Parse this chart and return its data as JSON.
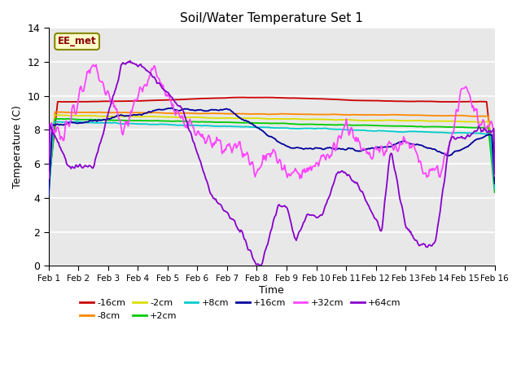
{
  "title": "Soil/Water Temperature Set 1",
  "xlabel": "Time",
  "ylabel": "Temperature (C)",
  "ylim": [
    0,
    14
  ],
  "xlim": [
    0,
    15
  ],
  "xtick_labels": [
    "Feb 1",
    "Feb 2",
    "Feb 3",
    "Feb 4",
    "Feb 5",
    "Feb 6",
    "Feb 7",
    "Feb 8",
    "Feb 9",
    "Feb 10",
    "Feb 11",
    "Feb 12",
    "Feb 13",
    "Feb 14",
    "Feb 15",
    "Feb 16"
  ],
  "ytick_labels": [
    "0",
    "2",
    "4",
    "6",
    "8",
    "10",
    "12",
    "14"
  ],
  "colors": {
    "-16cm": "#cc0000",
    "-8cm": "#ff8800",
    "-2cm": "#dddd00",
    "+2cm": "#00cc00",
    "+8cm": "#00cccc",
    "+16cm": "#000099",
    "+32cm": "#ff44ff",
    "+64cm": "#8800cc"
  },
  "annotation_text": "EE_met",
  "background_color": "#e8e8e8",
  "plot_background": "#ffffff",
  "n_points": 500
}
